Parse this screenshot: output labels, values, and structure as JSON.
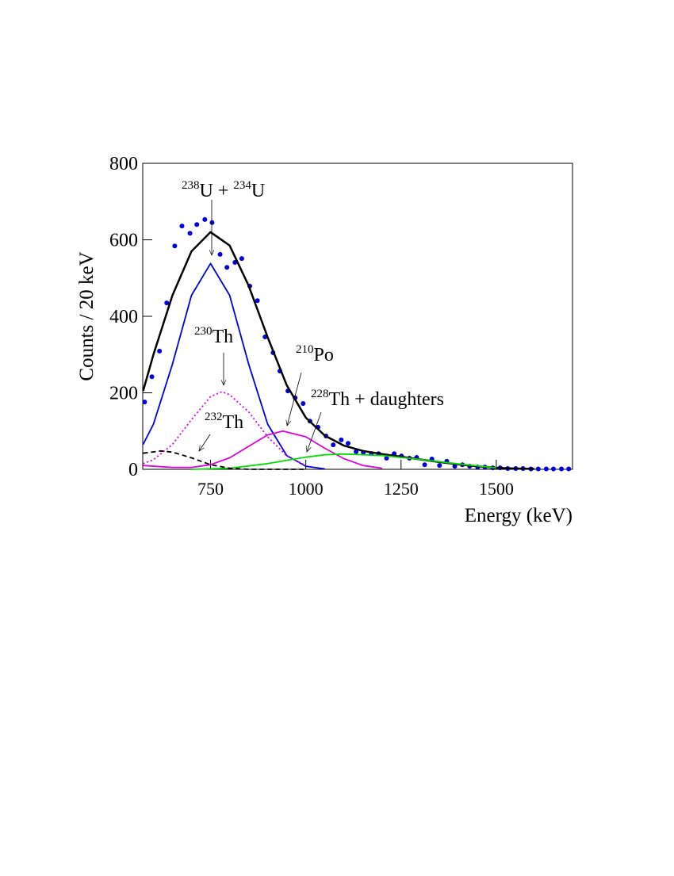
{
  "chart_data": {
    "type": "scatter",
    "x_label": "Energy (keV)",
    "y_label": "Counts / 20 keV",
    "xlim": [
      572,
      1700
    ],
    "ylim": [
      0,
      800
    ],
    "xticks": [
      750,
      1000,
      1250,
      1500
    ],
    "yticks": [
      0,
      200,
      400,
      600,
      800
    ],
    "series": [
      {
        "kind": "points",
        "color": "#0000dd",
        "x": [
          577,
          596,
          616,
          635,
          656,
          675,
          696,
          714,
          735,
          754,
          775,
          793,
          814,
          832,
          853,
          873,
          893,
          914,
          932,
          953,
          972,
          993,
          1011,
          1032,
          1053,
          1072,
          1093,
          1111,
          1132,
          1151,
          1172,
          1191,
          1212,
          1232,
          1251,
          1272,
          1291,
          1312,
          1331,
          1351,
          1370,
          1391,
          1411,
          1430,
          1451,
          1470,
          1491,
          1510,
          1530,
          1551,
          1570,
          1591,
          1610,
          1631,
          1650,
          1671,
          1690
        ],
        "values": [
          176,
          242,
          309,
          435,
          584,
          636,
          617,
          640,
          653,
          645,
          562,
          528,
          541,
          551,
          479,
          441,
          346,
          305,
          257,
          205,
          187,
          172,
          126,
          110,
          87,
          64,
          77,
          68,
          46,
          44,
          41,
          41,
          29,
          41,
          35,
          29,
          31,
          12,
          27,
          10,
          21,
          8,
          12,
          8,
          6,
          6,
          4,
          4,
          2,
          2,
          2,
          1,
          1,
          1,
          1,
          1,
          1
        ]
      },
      {
        "kind": "line",
        "color": "#000000",
        "width": 2.5,
        "dash": "none",
        "x": [
          573,
          600,
          650,
          700,
          750,
          800,
          850,
          900,
          950,
          1000,
          1050,
          1100,
          1150,
          1200,
          1250,
          1300,
          1350,
          1400,
          1450,
          1500,
          1550,
          1600
        ],
        "values": [
          205,
          300,
          455,
          570,
          620,
          585,
          480,
          345,
          220,
          135,
          88,
          62,
          48,
          40,
          33,
          26,
          19,
          13,
          8,
          4,
          2,
          1
        ]
      },
      {
        "kind": "line",
        "color": "#0000dd",
        "width": 1.8,
        "dash": "none",
        "x": [
          573,
          600,
          650,
          700,
          750,
          800,
          850,
          900,
          950,
          1000,
          1050
        ],
        "values": [
          65,
          118,
          275,
          455,
          538,
          455,
          275,
          118,
          36,
          8,
          1
        ]
      },
      {
        "kind": "line",
        "color": "#e000e0",
        "width": 1.8,
        "dash": "2 3",
        "x": [
          573,
          600,
          650,
          700,
          750,
          780,
          800,
          850,
          900,
          950,
          1000
        ],
        "values": [
          15,
          25,
          65,
          130,
          190,
          203,
          195,
          150,
          85,
          35,
          10
        ]
      },
      {
        "kind": "line",
        "color": "#e000e0",
        "width": 1.8,
        "dash": "none",
        "x": [
          573,
          650,
          700,
          750,
          800,
          850,
          900,
          940,
          1000,
          1050,
          1100,
          1150,
          1200
        ],
        "values": [
          10,
          5,
          5,
          12,
          30,
          60,
          90,
          100,
          85,
          55,
          28,
          10,
          3
        ]
      },
      {
        "kind": "line",
        "color": "#00dd00",
        "width": 1.8,
        "dash": "none",
        "x": [
          700,
          800,
          900,
          1000,
          1050,
          1100,
          1200,
          1300,
          1400,
          1500
        ],
        "values": [
          0,
          3,
          15,
          32,
          38,
          40,
          36,
          26,
          14,
          4
        ]
      },
      {
        "kind": "line",
        "color": "#000000",
        "width": 1.8,
        "dash": "6 4",
        "x": [
          573,
          620,
          650,
          700,
          750,
          800,
          850,
          1000
        ],
        "values": [
          42,
          48,
          45,
          30,
          12,
          3,
          0,
          0
        ]
      }
    ],
    "annotations": [
      {
        "parts": [
          {
            "sup": "238"
          },
          {
            "text": "U + "
          },
          {
            "sup": "234"
          },
          {
            "text": "U"
          }
        ]
      },
      {
        "parts": [
          {
            "sup": "230"
          },
          {
            "text": "Th"
          }
        ]
      },
      {
        "parts": [
          {
            "sup": "232"
          },
          {
            "text": "Th"
          }
        ]
      },
      {
        "parts": [
          {
            "sup": "210"
          },
          {
            "text": "Po"
          }
        ]
      },
      {
        "parts": [
          {
            "sup": "228"
          },
          {
            "text": "Th + daughters"
          }
        ]
      }
    ]
  }
}
